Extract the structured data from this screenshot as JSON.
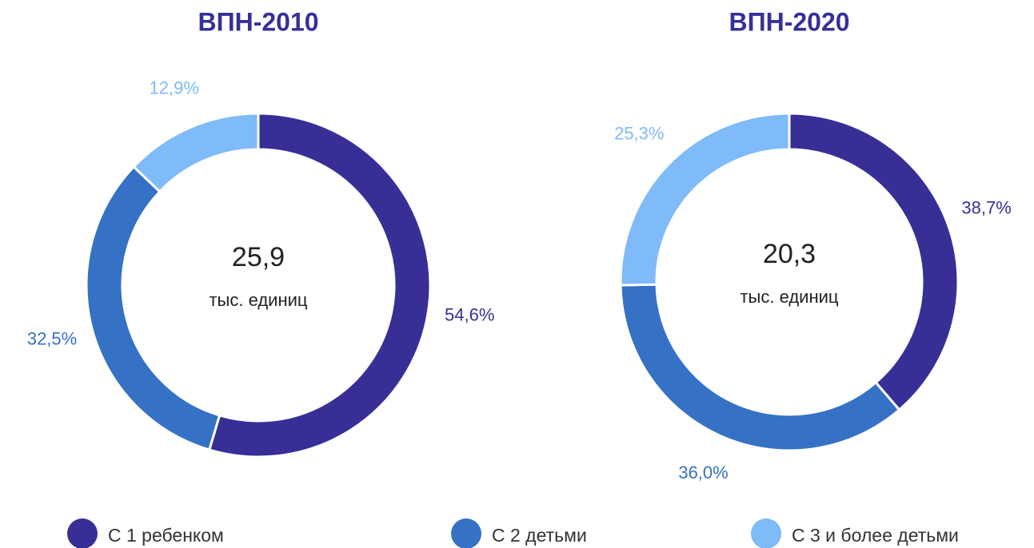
{
  "chart_data": [
    {
      "type": "pie",
      "title": "ВПН-2010",
      "center_label": "25,9",
      "center_note": "тыс. единиц",
      "categories": [
        "С 1 ребенком",
        "С 2 детьми",
        "С 3 и более детьми"
      ],
      "values": [
        54.6,
        32.5,
        12.9
      ],
      "value_labels": [
        "54,6%",
        "32,5%",
        "12,9%"
      ],
      "colors": [
        "#372f96",
        "#3571c4",
        "#7fbaf9"
      ]
    },
    {
      "type": "pie",
      "title": "ВПН-2020",
      "center_label": "20,3",
      "center_note": "тыс. единиц",
      "categories": [
        "С 1 ребенком",
        "С 2 детьми",
        "С 3 и более детьми"
      ],
      "values": [
        38.7,
        36.0,
        25.3
      ],
      "value_labels": [
        "38,7%",
        "36,0%",
        "25,3%"
      ],
      "colors": [
        "#372f96",
        "#3571c4",
        "#7fbaf9"
      ]
    }
  ]
}
